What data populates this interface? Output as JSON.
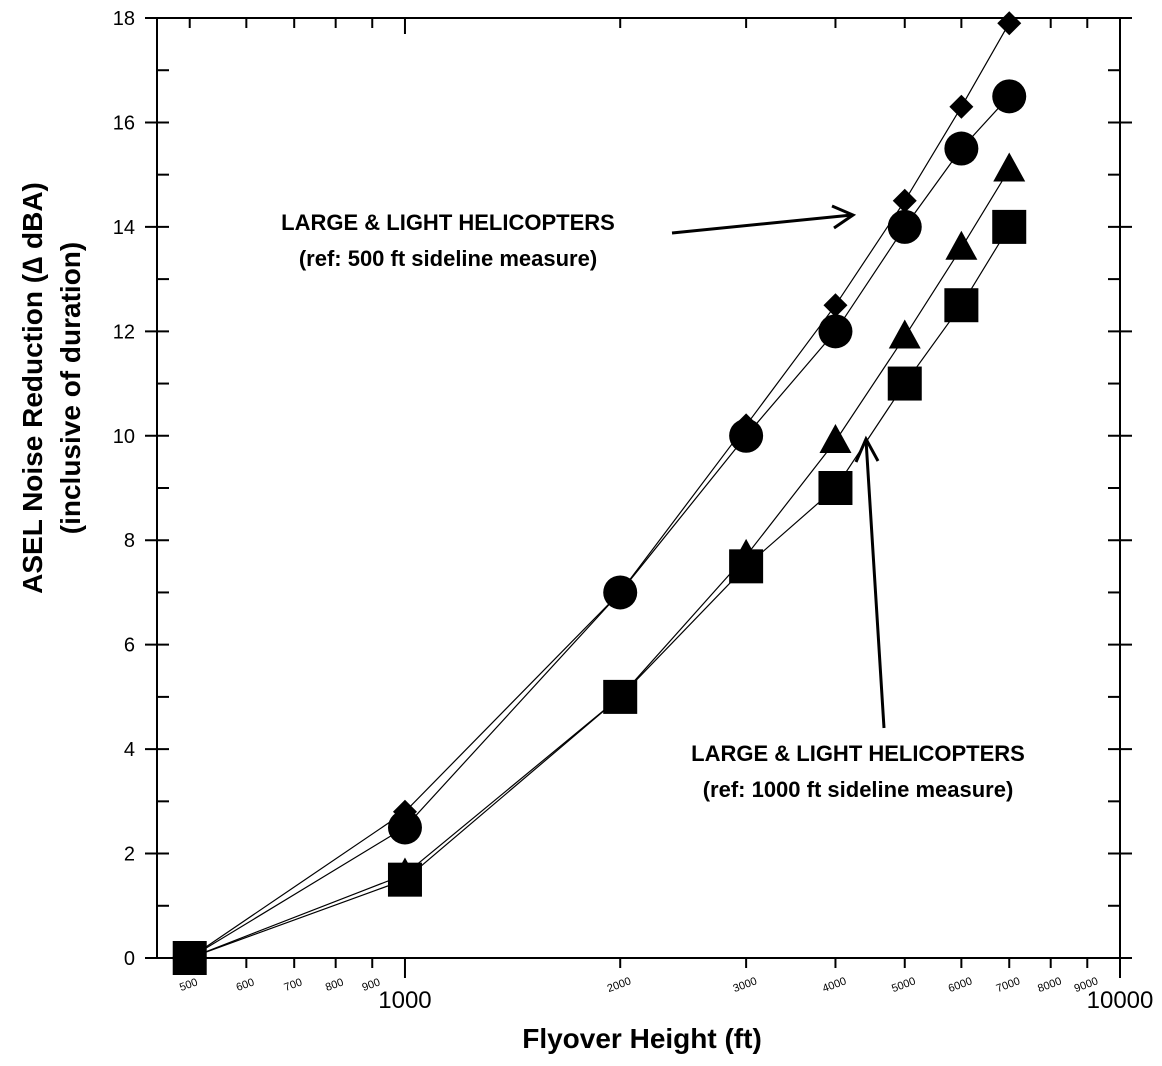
{
  "chart_data": {
    "type": "line",
    "xscale": "log",
    "xlim": [
      450,
      10000
    ],
    "ylim": [
      0,
      18
    ],
    "grid": false,
    "xlabel": "Flyover Height (ft)",
    "ylabel_line1": "ASEL Noise Reduction (∆ dBA)",
    "ylabel_line2": "(inclusive of duration)",
    "y_ticks": [
      0,
      2,
      4,
      6,
      8,
      10,
      12,
      14,
      16,
      18
    ],
    "x_major_ticks": [
      {
        "value": 1000,
        "label": "1000"
      },
      {
        "value": 10000,
        "label": "10000"
      }
    ],
    "x_minor_ticks": [
      {
        "value": 500,
        "label": "500"
      },
      {
        "value": 600,
        "label": "600"
      },
      {
        "value": 700,
        "label": "700"
      },
      {
        "value": 800,
        "label": "800"
      },
      {
        "value": 900,
        "label": "900"
      },
      {
        "value": 2000,
        "label": "2000"
      },
      {
        "value": 3000,
        "label": "3000"
      },
      {
        "value": 4000,
        "label": "4000"
      },
      {
        "value": 5000,
        "label": "5000"
      },
      {
        "value": 6000,
        "label": "6000"
      },
      {
        "value": 7000,
        "label": "7000"
      },
      {
        "value": 8000,
        "label": "8000"
      },
      {
        "value": 9000,
        "label": "9000"
      }
    ],
    "series": [
      {
        "marker": "diamond",
        "x": [
          500,
          1000,
          2000,
          3000,
          4000,
          5000,
          6000,
          7000
        ],
        "y": [
          0,
          2.8,
          7.0,
          10.2,
          12.5,
          14.5,
          16.3,
          17.9
        ]
      },
      {
        "marker": "circle",
        "x": [
          500,
          1000,
          2000,
          3000,
          4000,
          5000,
          6000,
          7000
        ],
        "y": [
          0,
          2.5,
          7.0,
          10.0,
          12.0,
          14.0,
          15.5,
          16.5
        ]
      },
      {
        "marker": "triangle",
        "x": [
          500,
          1000,
          2000,
          3000,
          4000,
          5000,
          6000,
          7000
        ],
        "y": [
          0,
          1.6,
          5.0,
          7.7,
          9.9,
          11.9,
          13.6,
          15.1
        ]
      },
      {
        "marker": "square",
        "x": [
          500,
          1000,
          2000,
          3000,
          4000,
          5000,
          6000,
          7000
        ],
        "y": [
          0,
          1.5,
          5.0,
          7.5,
          9.0,
          11.0,
          12.5,
          14.0
        ]
      }
    ],
    "annotations": [
      {
        "line1": "LARGE & LIGHT HELICOPTERS",
        "line2": "(ref: 500 ft sideline measure)"
      },
      {
        "line1": "LARGE & LIGHT HELICOPTERS",
        "line2": "(ref: 1000 ft sideline measure)"
      }
    ]
  }
}
